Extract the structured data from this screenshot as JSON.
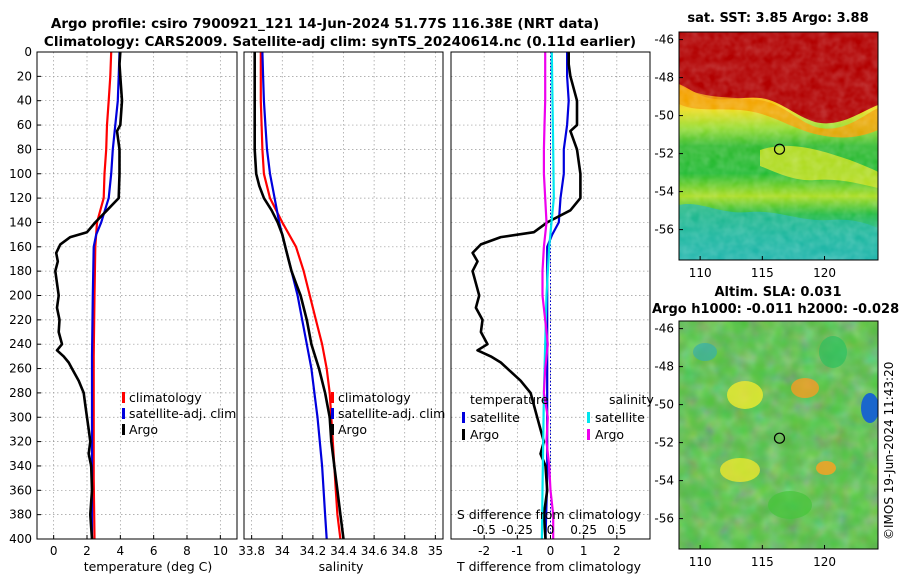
{
  "figure": {
    "title_line1": "Argo profile: csiro 7900921_121 14-Jun-2024 51.77S 116.38E (NRT data)",
    "title_line2": "Climatology: CARS2009. Satellite-adj clim: synTS_20240614.nc (0.11d earlier)",
    "credit": "©IMOS 19-Jun-2024 11:43:20"
  },
  "colors": {
    "climatology": "#ff0000",
    "satellite": "#0000dd",
    "argo": "#000000",
    "sal_satellite": "#00e5ee",
    "sal_argo": "#ee00ee",
    "zero_line": "#0000cc"
  },
  "chart_data": [
    {
      "type": "line",
      "id": "temp",
      "xlabel": "temperature (deg C)",
      "ylabel": "",
      "xlim": [
        -1,
        11
      ],
      "ylim": [
        400,
        0
      ],
      "xticks": [
        0,
        2,
        4,
        6,
        8,
        10
      ],
      "yticks": [
        0,
        20,
        40,
        60,
        80,
        100,
        120,
        140,
        160,
        180,
        200,
        220,
        240,
        260,
        280,
        300,
        320,
        340,
        360,
        380,
        400
      ],
      "legend": {
        "position": "center-right",
        "entries": [
          "climatology",
          "satellite-adj. clim",
          "Argo"
        ]
      },
      "series": [
        {
          "name": "climatology",
          "color_key": "climatology",
          "depth": [
            0,
            20,
            40,
            60,
            80,
            100,
            120,
            140,
            160,
            200,
            250,
            300,
            350,
            400
          ],
          "values": [
            3.45,
            3.4,
            3.3,
            3.2,
            3.15,
            3.05,
            3.0,
            2.6,
            2.5,
            2.45,
            2.4,
            2.4,
            2.4,
            2.45
          ]
        },
        {
          "name": "satellite-adj. clim",
          "color_key": "satellite",
          "depth": [
            0,
            20,
            40,
            60,
            80,
            100,
            120,
            140,
            150,
            160,
            200,
            250,
            300,
            350,
            400
          ],
          "values": [
            3.95,
            3.9,
            3.85,
            3.7,
            3.55,
            3.45,
            3.3,
            2.85,
            2.55,
            2.4,
            2.35,
            2.3,
            2.3,
            2.3,
            2.3
          ]
        },
        {
          "name": "Argo",
          "color_key": "argo",
          "depth": [
            0,
            10,
            20,
            40,
            60,
            65,
            80,
            100,
            120,
            130,
            140,
            148,
            152,
            158,
            165,
            172,
            180,
            190,
            200,
            210,
            220,
            230,
            240,
            245,
            250,
            255,
            260,
            270,
            280,
            290,
            300,
            310,
            320,
            330,
            340,
            360,
            380,
            400
          ],
          "values": [
            4.0,
            3.95,
            4.0,
            4.1,
            4.0,
            3.8,
            3.95,
            3.95,
            3.9,
            3.2,
            2.5,
            2.0,
            1.0,
            0.4,
            0.15,
            0.25,
            0.1,
            0.2,
            0.3,
            0.2,
            0.35,
            0.3,
            0.5,
            0.2,
            0.6,
            0.9,
            1.1,
            1.5,
            1.8,
            1.9,
            2.0,
            2.1,
            2.2,
            2.1,
            2.25,
            2.3,
            2.2,
            2.3
          ]
        }
      ]
    },
    {
      "type": "line",
      "id": "salinity",
      "xlabel": "salinity",
      "xlim": [
        33.75,
        35.05
      ],
      "ylim": [
        400,
        0
      ],
      "xticks": [
        33.8,
        34,
        34.2,
        34.4,
        34.6,
        34.8,
        35
      ],
      "xtick_labels": [
        "33.8",
        "34",
        "34.2",
        "34.4",
        "34.6",
        "34.8",
        "35"
      ],
      "legend": {
        "position": "center-right",
        "entries": [
          "climatology",
          "satellite-adj. clim",
          "Argo"
        ]
      },
      "series": [
        {
          "name": "climatology",
          "color_key": "climatology",
          "depth": [
            0,
            20,
            40,
            60,
            80,
            100,
            120,
            140,
            160,
            180,
            200,
            220,
            240,
            260,
            280,
            300,
            320,
            340,
            360,
            380,
            400
          ],
          "values": [
            33.86,
            33.86,
            33.86,
            33.865,
            33.87,
            33.88,
            33.92,
            34.0,
            34.09,
            34.14,
            34.18,
            34.22,
            34.26,
            34.29,
            34.31,
            34.32,
            34.33,
            34.34,
            34.35,
            34.36,
            34.38
          ]
        },
        {
          "name": "satellite-adj. clim",
          "color_key": "satellite",
          "depth": [
            0,
            20,
            40,
            60,
            80,
            100,
            120,
            140,
            160,
            180,
            200,
            220,
            240,
            260,
            280,
            300,
            320,
            340,
            360,
            380,
            400
          ],
          "values": [
            33.87,
            33.875,
            33.88,
            33.89,
            33.9,
            33.92,
            33.95,
            33.98,
            34.02,
            34.06,
            34.1,
            34.13,
            34.16,
            34.19,
            34.21,
            34.23,
            34.245,
            34.26,
            34.27,
            34.28,
            34.29
          ]
        },
        {
          "name": "Argo",
          "color_key": "argo",
          "depth": [
            0,
            20,
            40,
            60,
            80,
            100,
            110,
            120,
            130,
            140,
            150,
            160,
            170,
            180,
            190,
            200,
            220,
            240,
            260,
            280,
            300,
            320,
            340,
            360,
            380,
            400
          ],
          "values": [
            33.82,
            33.82,
            33.82,
            33.82,
            33.82,
            33.83,
            33.85,
            33.88,
            33.93,
            33.97,
            34.0,
            34.02,
            34.04,
            34.06,
            34.09,
            34.12,
            34.16,
            34.19,
            34.24,
            34.28,
            34.31,
            34.32,
            34.34,
            34.36,
            34.38,
            34.4
          ]
        }
      ]
    },
    {
      "type": "line",
      "id": "difference",
      "xlabel": "T difference from climatology",
      "xlabel_top": "S difference from climatology",
      "xlim": [
        -3.0,
        3.0
      ],
      "ylim": [
        400,
        0
      ],
      "xticks": [
        -2,
        -1,
        0,
        1,
        2
      ],
      "xtick_labels": [
        "-2",
        "-1",
        "0",
        "1",
        "2"
      ],
      "s_ticks": [
        -0.5,
        -0.25,
        0,
        0.25,
        0.5
      ],
      "s_tick_labels": [
        "-0.5",
        "-0.25",
        "0",
        "0.25",
        "0.5"
      ],
      "s_scale": 4,
      "legend": {
        "position": "center",
        "temperature_header": "temperature",
        "salinity_header": "salinity",
        "temperature_entries": [
          "satellite",
          "Argo"
        ],
        "salinity_entries": [
          "satellite",
          "Argo"
        ]
      },
      "series": [
        {
          "name": "temperature satellite",
          "color_key": "satellite",
          "depth": [
            0,
            20,
            40,
            60,
            80,
            100,
            120,
            140,
            150,
            160,
            200,
            250,
            300,
            350,
            400
          ],
          "values": [
            0.5,
            0.5,
            0.55,
            0.5,
            0.4,
            0.4,
            0.3,
            0.25,
            0.05,
            -0.1,
            -0.1,
            -0.1,
            -0.1,
            -0.1,
            -0.15
          ]
        },
        {
          "name": "temperature Argo",
          "color_key": "argo",
          "depth": [
            0,
            10,
            20,
            40,
            60,
            65,
            80,
            100,
            120,
            130,
            140,
            148,
            152,
            158,
            165,
            172,
            180,
            190,
            200,
            210,
            220,
            230,
            240,
            245,
            250,
            255,
            260,
            270,
            280,
            290,
            300,
            310,
            320,
            330,
            340,
            360,
            380,
            400
          ],
          "values": [
            0.55,
            0.55,
            0.6,
            0.8,
            0.8,
            0.6,
            0.8,
            0.9,
            0.9,
            0.6,
            -0.1,
            -0.5,
            -1.5,
            -2.1,
            -2.35,
            -2.2,
            -2.35,
            -2.25,
            -2.15,
            -2.25,
            -2.05,
            -2.1,
            -1.9,
            -2.2,
            -1.8,
            -1.5,
            -1.3,
            -0.9,
            -0.6,
            -0.5,
            -0.4,
            -0.3,
            -0.2,
            -0.3,
            -0.15,
            -0.1,
            -0.2,
            -0.15
          ]
        },
        {
          "name": "salinity satellite",
          "color_key": "sal_satellite",
          "scale_key": "salinity",
          "depth": [
            0,
            40,
            80,
            120,
            160,
            200,
            240,
            280,
            320,
            360,
            400
          ],
          "values": [
            0.01,
            0.015,
            0.02,
            0.025,
            -0.01,
            -0.03,
            -0.04,
            -0.05,
            -0.055,
            -0.06,
            -0.065
          ]
        },
        {
          "name": "salinity Argo",
          "color_key": "sal_argo",
          "scale_key": "salinity",
          "depth": [
            0,
            20,
            40,
            60,
            80,
            100,
            120,
            140,
            160,
            180,
            200,
            220,
            240,
            260,
            280,
            300,
            320,
            340,
            360,
            380,
            400
          ],
          "values": [
            -0.04,
            -0.04,
            -0.04,
            -0.045,
            -0.05,
            -0.05,
            -0.04,
            -0.03,
            -0.05,
            -0.06,
            -0.06,
            -0.04,
            -0.02,
            -0.04,
            -0.05,
            -0.02,
            -0.03,
            -0.01,
            0.0,
            0.02,
            0.02
          ]
        }
      ]
    },
    {
      "type": "heatmap",
      "id": "sst_map",
      "title": "sat. SST: 3.85 Argo: 3.88",
      "xticks": [
        110,
        115,
        120
      ],
      "yticks": [
        -46,
        -48,
        -50,
        -52,
        -54,
        -56
      ],
      "xlim": [
        108.3,
        124.3
      ],
      "ylim": [
        -57.6,
        -45.6
      ],
      "marker": {
        "lon": 116.38,
        "lat": -51.77
      }
    },
    {
      "type": "heatmap",
      "id": "sla_map",
      "title_line1": "Altim. SLA: 0.031",
      "title_line2": "Argo h1000: -0.011 h2000: -0.028",
      "xticks": [
        110,
        115,
        120
      ],
      "yticks": [
        -46,
        -48,
        -50,
        -52,
        -54,
        -56
      ],
      "xlim": [
        108.3,
        124.3
      ],
      "ylim": [
        -57.6,
        -45.6
      ],
      "marker": {
        "lon": 116.38,
        "lat": -51.77
      }
    }
  ]
}
